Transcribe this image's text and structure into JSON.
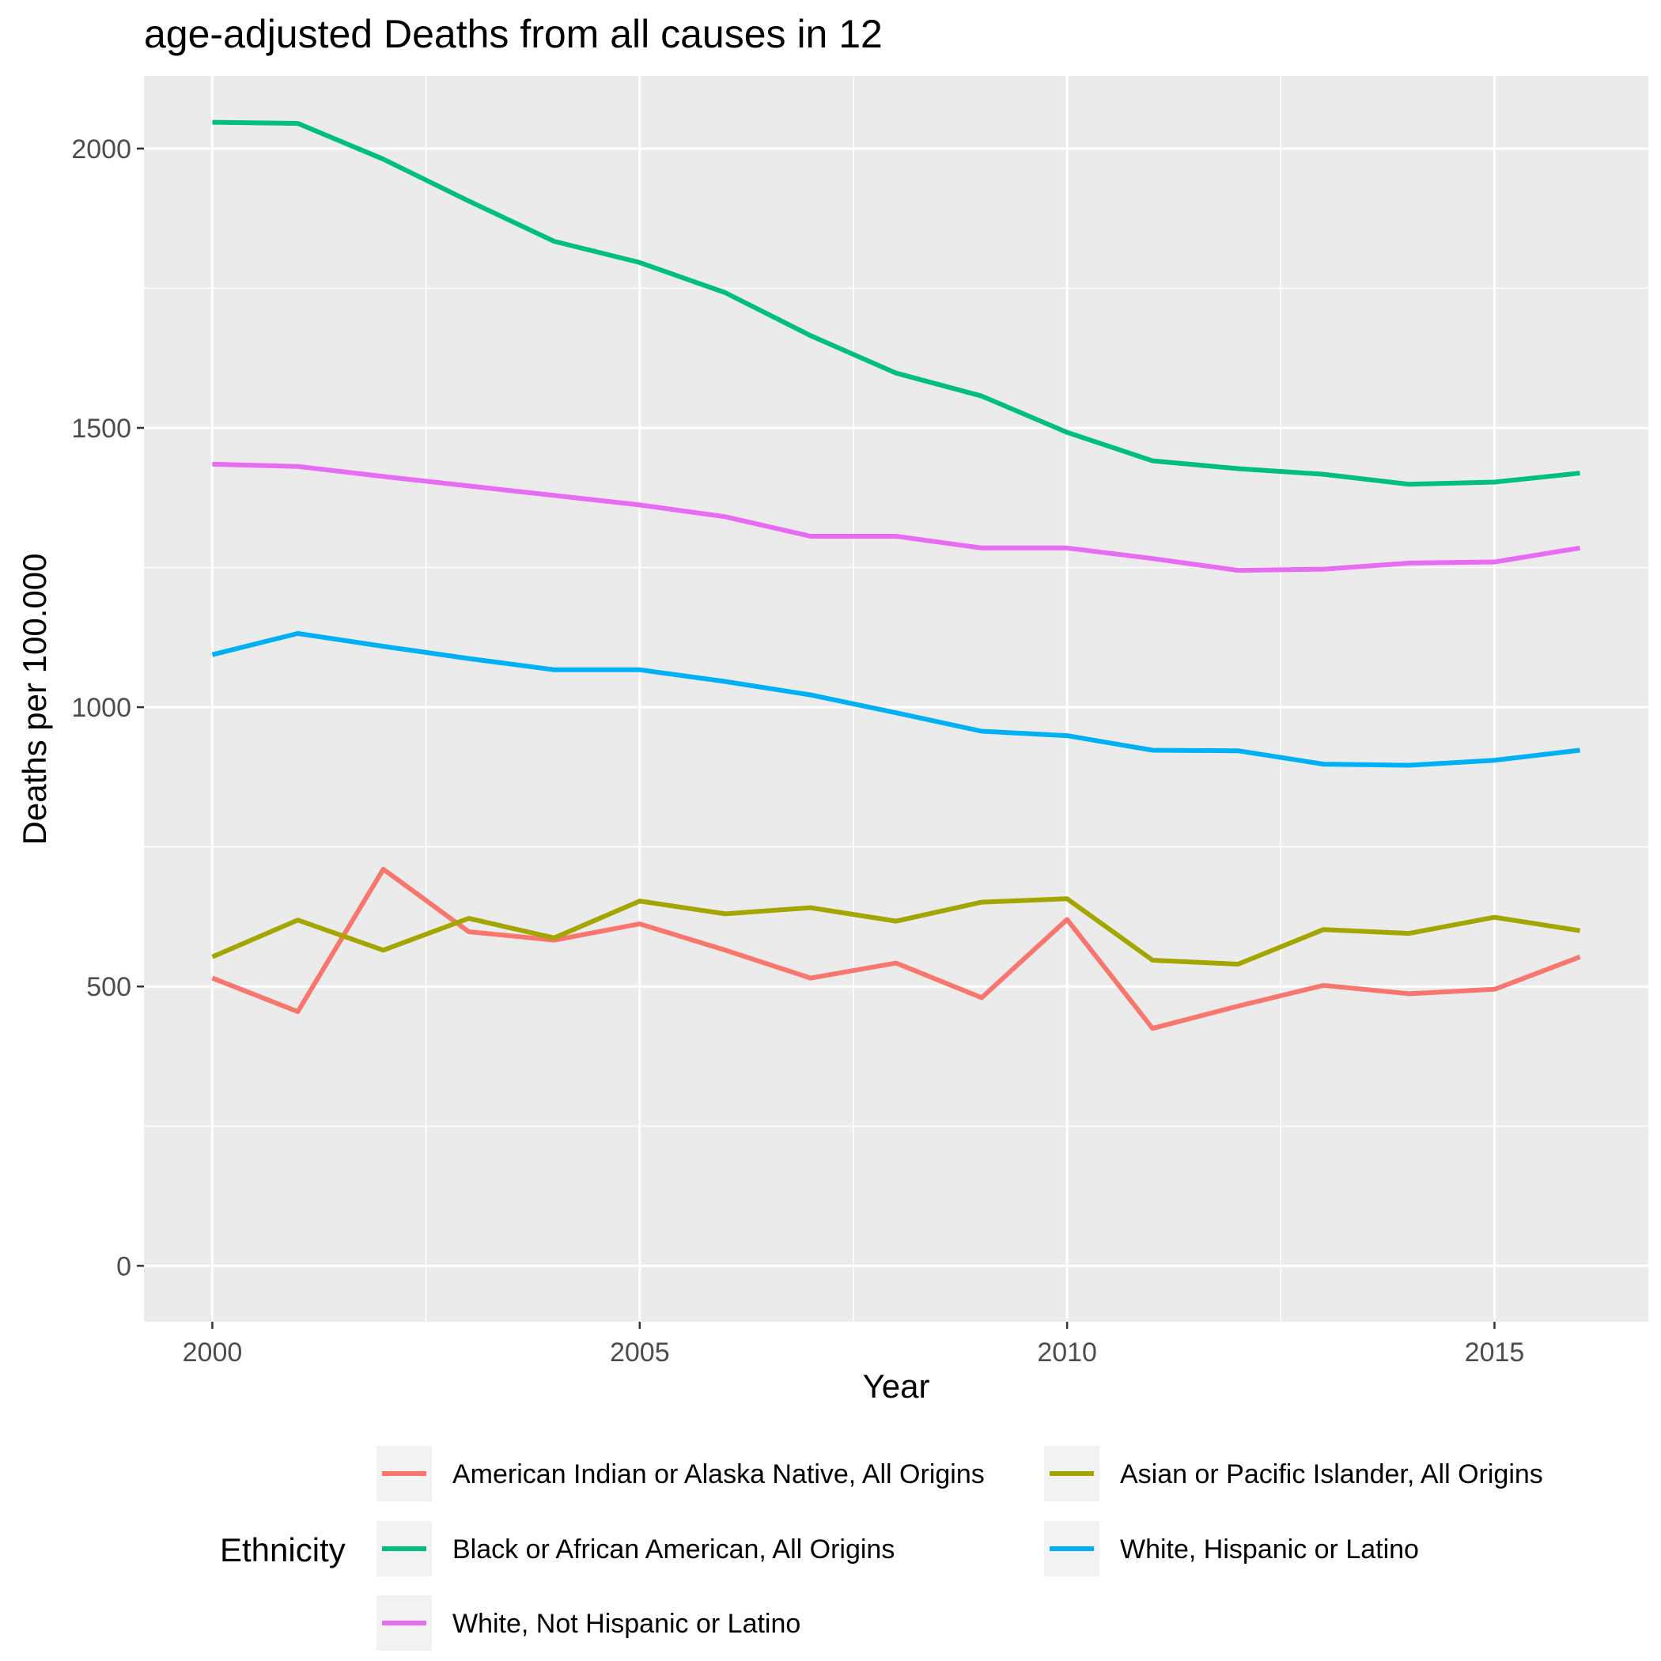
{
  "chart_data": {
    "type": "line",
    "title": "age-adjusted Deaths from all causes in 12",
    "xlabel": "Year",
    "ylabel": "Deaths per 100.000",
    "xlim": [
      1999.2,
      2016.8
    ],
    "ylim": [
      -100,
      2130
    ],
    "x_ticks": [
      2000,
      2005,
      2010,
      2015
    ],
    "x_tick_labels": [
      "2000",
      "2005",
      "2010",
      "2015"
    ],
    "y_ticks": [
      0,
      500,
      1000,
      1500,
      2000
    ],
    "y_tick_labels": [
      "0",
      "500",
      "1000",
      "1500",
      "2000"
    ],
    "grid": true,
    "legend_title": "Ethnicity",
    "legend_position": "bottom",
    "x": [
      2000,
      2001,
      2002,
      2003,
      2004,
      2005,
      2006,
      2007,
      2008,
      2009,
      2010,
      2011,
      2012,
      2013,
      2014,
      2015,
      2016
    ],
    "series": [
      {
        "name": "American Indian or Alaska Native, All Origins",
        "color": "#F8766D",
        "values": [
          515,
          455,
          710,
          598,
          583,
          612,
          565,
          515,
          542,
          480,
          620,
          425,
          465,
          502,
          487,
          495,
          553
        ]
      },
      {
        "name": "Asian or Pacific Islander, All Origins",
        "color": "#A3A500",
        "values": [
          553,
          619,
          565,
          622,
          587,
          653,
          630,
          641,
          617,
          651,
          657,
          547,
          540,
          602,
          595,
          624,
          600
        ]
      },
      {
        "name": "Black or African American, All Origins",
        "color": "#00BF7D",
        "values": [
          2047,
          2045,
          1981,
          1906,
          1834,
          1796,
          1742,
          1665,
          1598,
          1557,
          1492,
          1441,
          1427,
          1417,
          1399,
          1403,
          1419
        ]
      },
      {
        "name": "White, Hispanic or Latino",
        "color": "#00B0F6",
        "values": [
          1094,
          1132,
          1109,
          1087,
          1067,
          1067,
          1046,
          1022,
          990,
          957,
          949,
          923,
          922,
          898,
          896,
          905,
          923
        ]
      },
      {
        "name": "White, Not Hispanic or Latino",
        "color": "#E76BF3",
        "values": [
          1435,
          1431,
          1413,
          1396,
          1379,
          1362,
          1341,
          1306,
          1306,
          1285,
          1285,
          1266,
          1245,
          1247,
          1258,
          1260,
          1285
        ]
      }
    ]
  }
}
